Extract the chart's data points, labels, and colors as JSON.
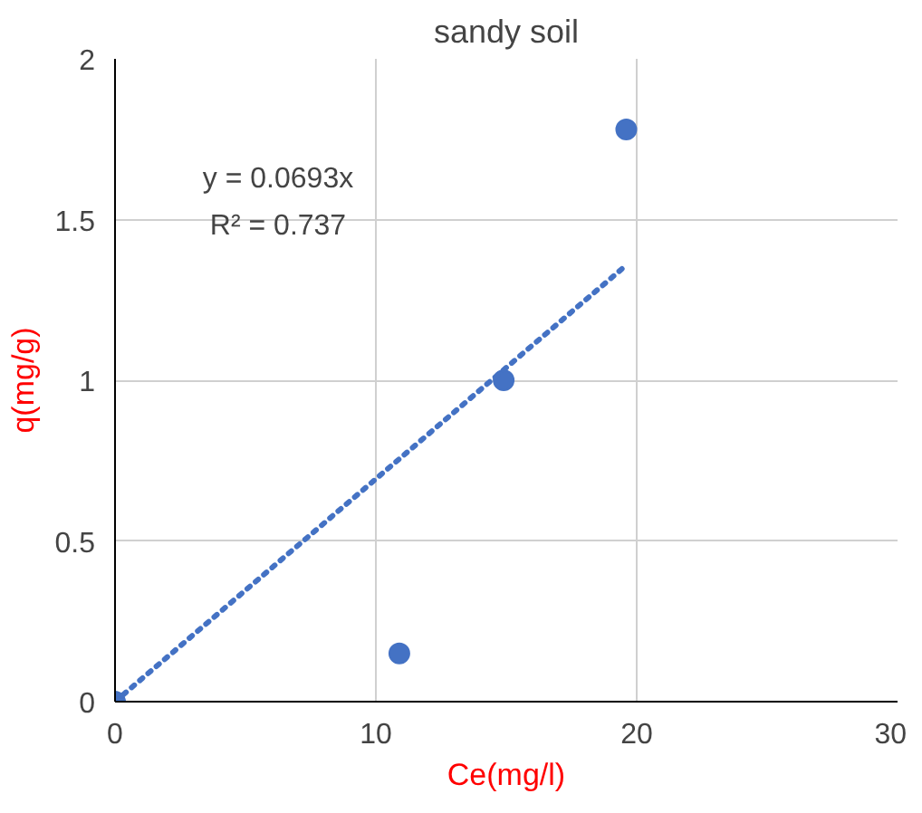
{
  "chart_data": {
    "type": "scatter",
    "title": "sandy soil",
    "xlabel": "Ce(mg/l)",
    "ylabel": "q(mg/g)",
    "series": [
      {
        "color": "#4472c4",
        "x": [
          0,
          10.9,
          14.9,
          19.6
        ],
        "values": [
          0,
          0.15,
          1.0,
          1.78
        ],
        "marker": "circle"
      },
      {
        "type": "line",
        "color": "#4472c4",
        "x": [
          0,
          19.6
        ],
        "values": [
          0,
          1.358
        ],
        "line_style": "dotted"
      }
    ],
    "annotations": [
      "y = 0.0693x",
      "R² = 0.737"
    ],
    "xlim": [
      0,
      30
    ],
    "ylim": [
      0,
      2
    ],
    "xticks": [
      0,
      10,
      20,
      30
    ],
    "yticks": [
      0,
      0.5,
      1,
      1.5,
      2
    ],
    "grid": true
  }
}
